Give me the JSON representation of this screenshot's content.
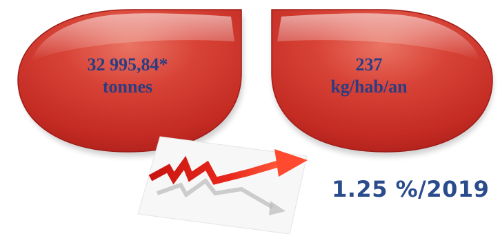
{
  "bubbles": {
    "total": {
      "value": "32 995,84*",
      "unit": "tonnes"
    },
    "per_capita": {
      "value": "237",
      "unit": "kg/hab/an"
    }
  },
  "trend": {
    "icon": "rising-arrow-icon",
    "rate": "1.25 %/2019"
  },
  "colors": {
    "bubble_red": "#c62828",
    "bubble_highlight": "#e86a5e",
    "text_blue": "#2a3d82",
    "rate_blue": "#2a4b8c",
    "arrow_red": "#e4231b"
  }
}
